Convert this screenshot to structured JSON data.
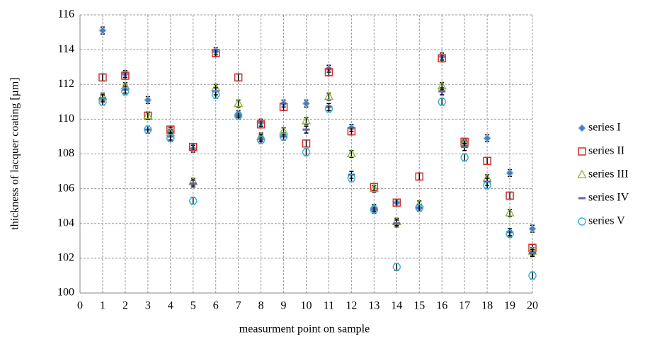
{
  "chart_data": {
    "type": "scatter",
    "x_label": "measurment point on sample",
    "y_label": "thickness of lacquer coating  [µm]",
    "xlim": [
      0,
      20
    ],
    "xticks": [
      0,
      1,
      2,
      3,
      4,
      5,
      6,
      7,
      8,
      9,
      10,
      11,
      12,
      13,
      14,
      15,
      16,
      17,
      18,
      19,
      20
    ],
    "ylim": [
      100,
      116
    ],
    "yticks": [
      100,
      102,
      104,
      106,
      108,
      110,
      112,
      114,
      116
    ],
    "grid": true,
    "legend": "right",
    "x": [
      1,
      2,
      3,
      4,
      5,
      6,
      7,
      8,
      9,
      10,
      11,
      12,
      13,
      14,
      15,
      16,
      17,
      18,
      19,
      20
    ],
    "series": [
      {
        "name": "series  I",
        "color": "#4a7ebb",
        "marker": "diamond",
        "values": [
          115.1,
          112.6,
          111.1,
          109.3,
          108.3,
          113.9,
          110.3,
          109.8,
          110.9,
          110.9,
          112.9,
          109.5,
          104.9,
          105.2,
          104.9,
          113.6,
          108.7,
          108.9,
          106.9,
          103.7
        ],
        "errors": [
          0.2,
          0.2,
          0.2,
          0.2,
          0.2,
          0.2,
          0.2,
          0.2,
          0.2,
          0.2,
          0.2,
          0.2,
          0.2,
          0.2,
          0.2,
          0.2,
          0.2,
          0.2,
          0.2,
          0.2
        ]
      },
      {
        "name": "series  II",
        "color": "#d92b2b",
        "marker": "square",
        "values": [
          112.4,
          112.5,
          110.2,
          109.4,
          108.4,
          113.8,
          112.4,
          109.7,
          110.7,
          108.6,
          112.7,
          109.3,
          106.1,
          105.2,
          106.7,
          113.5,
          108.7,
          107.6,
          105.6,
          102.6
        ],
        "errors": [
          0.2,
          0.2,
          0.2,
          0.2,
          0.2,
          0.2,
          0.2,
          0.2,
          0.2,
          0.2,
          0.2,
          0.2,
          0.2,
          0.2,
          0.2,
          0.2,
          0.2,
          0.2,
          0.2,
          0.2
        ]
      },
      {
        "name": "series  III",
        "color": "#8db33b",
        "marker": "triangle",
        "values": [
          111.3,
          111.9,
          110.2,
          109.2,
          106.4,
          111.8,
          110.9,
          109.0,
          109.3,
          109.9,
          111.3,
          108.0,
          106.0,
          104.1,
          105.1,
          111.9,
          108.6,
          106.6,
          104.6,
          102.4
        ],
        "errors": [
          0.2,
          0.2,
          0.2,
          0.2,
          0.2,
          0.2,
          0.2,
          0.2,
          0.2,
          0.2,
          0.2,
          0.2,
          0.2,
          0.2,
          0.2,
          0.2,
          0.2,
          0.2,
          0.2,
          0.2
        ]
      },
      {
        "name": "series  IV",
        "color": "#6b5fb0",
        "marker": "dash",
        "values": [
          111.2,
          111.7,
          109.4,
          109.0,
          106.3,
          111.6,
          110.2,
          108.9,
          109.0,
          109.4,
          110.7,
          106.8,
          104.8,
          104.0,
          104.9,
          111.6,
          108.4,
          106.4,
          103.5,
          102.3
        ],
        "errors": [
          0.2,
          0.2,
          0.2,
          0.2,
          0.2,
          0.2,
          0.2,
          0.2,
          0.2,
          0.2,
          0.2,
          0.2,
          0.2,
          0.2,
          0.2,
          0.2,
          0.2,
          0.2,
          0.2,
          0.2
        ]
      },
      {
        "name": "series  V",
        "color": "#3cb4d8",
        "marker": "circle",
        "values": [
          111.0,
          111.6,
          109.4,
          108.9,
          105.3,
          111.4,
          110.2,
          108.8,
          109.0,
          108.1,
          110.6,
          106.6,
          104.8,
          101.5,
          104.9,
          111.0,
          107.8,
          106.2,
          103.4,
          101.0
        ],
        "errors": [
          0.2,
          0.2,
          0.2,
          0.2,
          0.2,
          0.2,
          0.2,
          0.2,
          0.2,
          0.2,
          0.2,
          0.2,
          0.2,
          0.2,
          0.2,
          0.2,
          0.2,
          0.2,
          0.2,
          0.2
        ]
      }
    ]
  }
}
